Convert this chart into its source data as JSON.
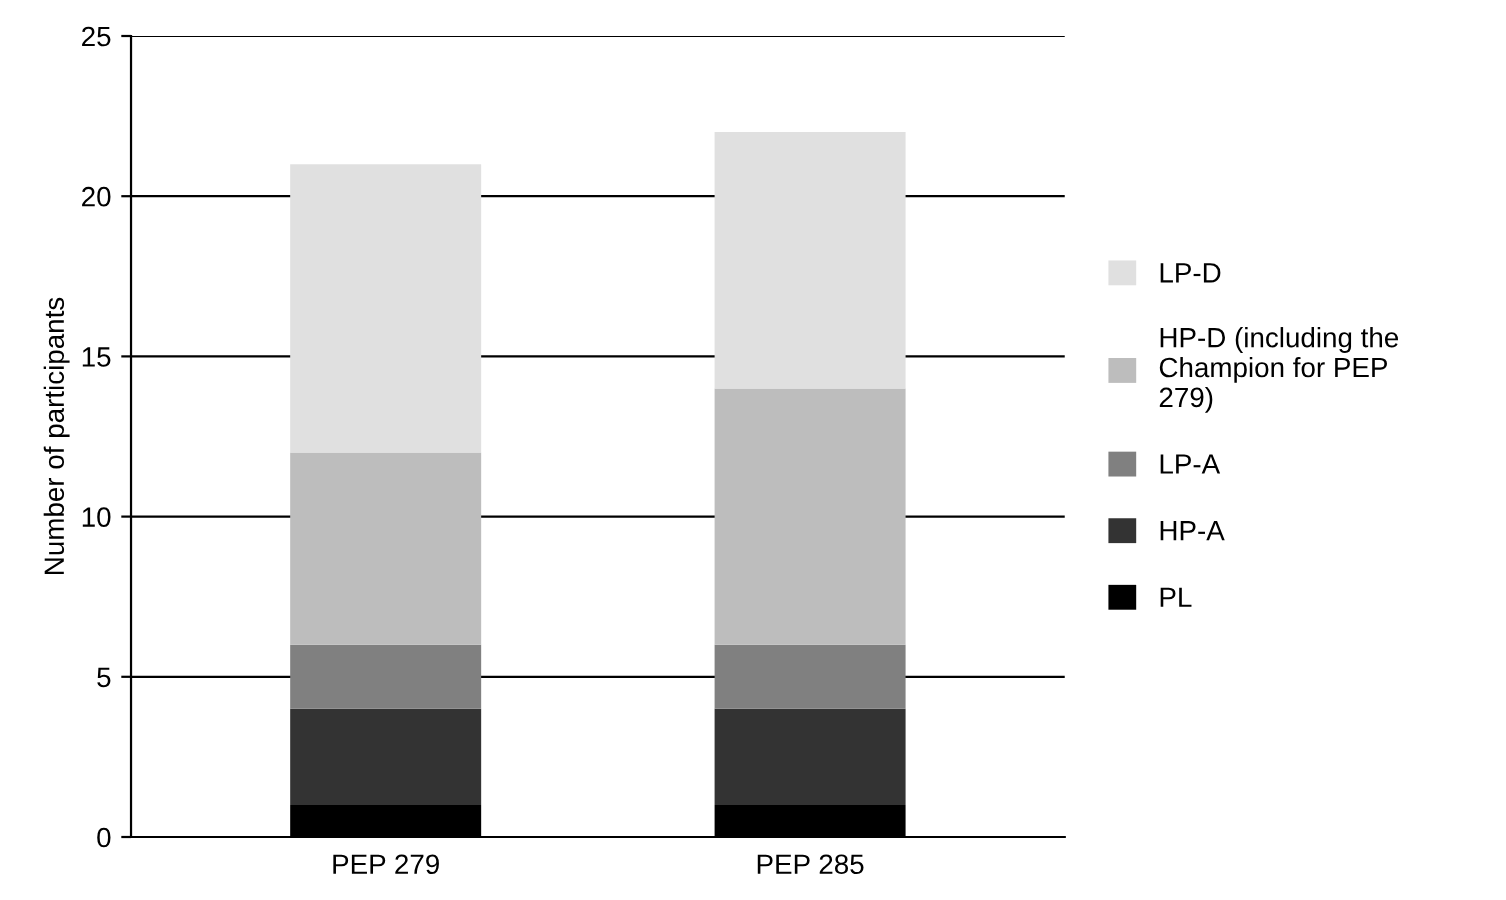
{
  "chart_data": {
    "type": "bar",
    "stacked": true,
    "ylabel": "Number of participants",
    "categories": [
      "PEP 279",
      "PEP 285"
    ],
    "series": [
      {
        "name": "PL",
        "color": "#000000",
        "values": [
          1,
          1
        ]
      },
      {
        "name": "HP-A",
        "color": "#333333",
        "values": [
          3,
          3
        ]
      },
      {
        "name": "LP-A",
        "color": "#808080",
        "values": [
          2,
          2
        ]
      },
      {
        "name": "HP-D (including the Champion for PEP 279)",
        "color": "#bdbdbd",
        "values": [
          6,
          8
        ]
      },
      {
        "name": "LP-D",
        "color": "#e0e0e0",
        "values": [
          9,
          8
        ]
      }
    ],
    "ylim": [
      0,
      25
    ],
    "yticks": [
      0,
      5,
      10,
      15,
      20,
      25
    ],
    "grid": "y",
    "legend": "right"
  }
}
